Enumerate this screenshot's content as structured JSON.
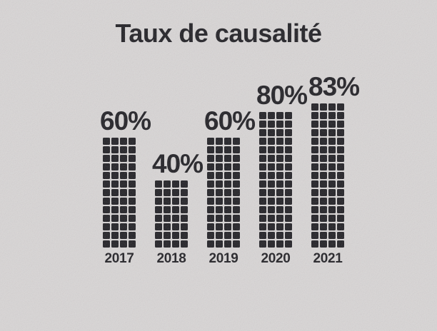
{
  "title": "Taux de causalité",
  "chart_data": {
    "type": "bar",
    "variant": "waffle",
    "title": "Taux de causalité",
    "categories": [
      "2017",
      "2018",
      "2019",
      "2020",
      "2021"
    ],
    "values": [
      60,
      40,
      60,
      80,
      83
    ],
    "value_labels": [
      "60%",
      "40%",
      "60%",
      "80%",
      "83%"
    ],
    "unit": "%",
    "ylim": [
      0,
      100
    ],
    "xlabel": "",
    "ylabel": "",
    "legend": false,
    "grid": false,
    "layout_hints": {
      "columns_per_bar": 4,
      "rows_per_bar": [
        13,
        8,
        13,
        16,
        17
      ],
      "value_label_position": "above-bar",
      "colors": {
        "square": "#1d1c21",
        "text": "#1d1c21",
        "background": "#d9d6d6"
      }
    }
  }
}
